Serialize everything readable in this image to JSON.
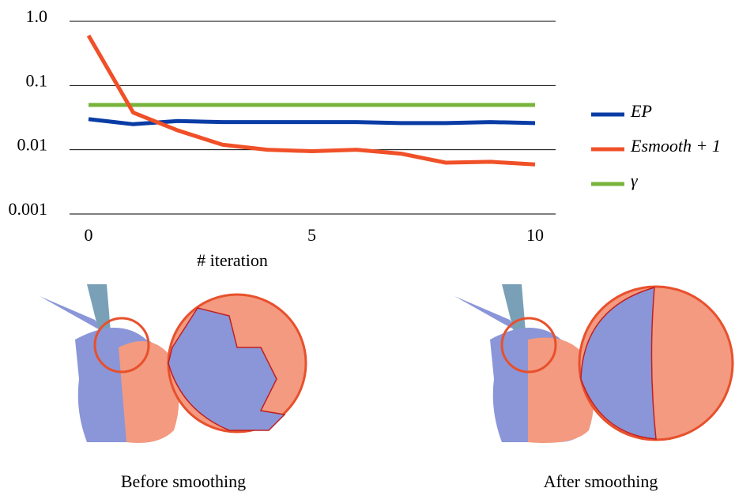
{
  "chart_data": {
    "type": "line",
    "x": [
      0,
      1,
      2,
      3,
      4,
      5,
      6,
      7,
      8,
      9,
      10
    ],
    "xlim": [
      0,
      10
    ],
    "xticks": [
      0,
      5,
      10
    ],
    "ylim": [
      0.001,
      1
    ],
    "yticks": [
      {
        "value": 1,
        "label": "1.0"
      },
      0.1,
      0.01,
      0.001
    ],
    "log_y": true,
    "grid": true,
    "xlabel": "# iteration",
    "series": [
      {
        "name": "EP",
        "color": "#0a3ca5",
        "values": [
          0.03,
          0.025,
          0.028,
          0.027,
          0.027,
          0.027,
          0.027,
          0.026,
          0.026,
          0.027,
          0.026
        ]
      },
      {
        "name": "Esmooth + 1",
        "color": "#f05028",
        "values": [
          0.6,
          0.038,
          0.02,
          0.012,
          0.01,
          0.0095,
          0.01,
          0.0087,
          0.0063,
          0.0065,
          0.0059
        ]
      },
      {
        "name": "γ",
        "color": "#78b43c",
        "values": [
          0.05,
          0.05,
          0.05,
          0.05,
          0.05,
          0.05,
          0.05,
          0.05,
          0.05,
          0.05,
          0.05
        ]
      }
    ]
  },
  "captions": [
    "Before smoothing",
    "After smoothing"
  ]
}
